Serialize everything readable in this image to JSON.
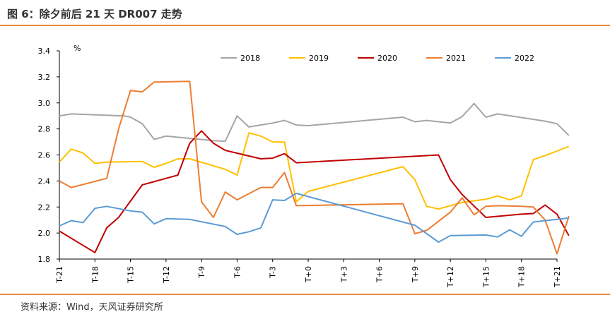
{
  "header": {
    "title": "图 6：除夕前后 21 天 DR007 走势"
  },
  "footer": {
    "source": "资料来源：Wind，天风证券研究所"
  },
  "colors": {
    "accent_rule": "#E8883A",
    "axis": "#000000"
  },
  "chart_data": {
    "type": "line",
    "title": "",
    "unit": "%",
    "ylim": [
      1.8,
      3.4
    ],
    "yticks": [
      1.8,
      2.0,
      2.2,
      2.4,
      2.6,
      2.8,
      3.0,
      3.2,
      3.4
    ],
    "ytick_labels": [
      "1.8",
      "2.0",
      "2.2",
      "2.4",
      "2.6",
      "2.8",
      "3.0",
      "3.2",
      "3.4"
    ],
    "xlim": [
      -21,
      21
    ],
    "xticks": [
      -21,
      -18,
      -15,
      -12,
      -9,
      -6,
      -3,
      0,
      3,
      6,
      9,
      12,
      15,
      18,
      21
    ],
    "xtick_labels": [
      "T-21",
      "T-18",
      "T-15",
      "T-12",
      "T-9",
      "T-6",
      "T-3",
      "T+0",
      "T+3",
      "T+6",
      "T+9",
      "T+12",
      "T+15",
      "T+18",
      "T+21"
    ],
    "grid": false,
    "legend_position": "top",
    "series": [
      {
        "name": "2018",
        "color": "#A5A5A5",
        "points": [
          [
            -21,
            2.9
          ],
          [
            -20,
            2.915
          ],
          [
            -15.5,
            2.9
          ],
          [
            -15,
            2.89
          ],
          [
            -14,
            2.84
          ],
          [
            -13,
            2.72
          ],
          [
            -12,
            2.745
          ],
          [
            -8,
            2.71
          ],
          [
            -7,
            2.705
          ],
          [
            -6,
            2.9
          ],
          [
            -5,
            2.815
          ],
          [
            -3,
            2.845
          ],
          [
            -2,
            2.865
          ],
          [
            -1,
            2.83
          ],
          [
            0,
            2.825
          ],
          [
            8,
            2.89
          ],
          [
            9,
            2.855
          ],
          [
            10,
            2.865
          ],
          [
            12,
            2.845
          ],
          [
            13,
            2.895
          ],
          [
            14,
            2.995
          ],
          [
            15,
            2.89
          ],
          [
            16,
            2.915
          ],
          [
            20,
            2.86
          ],
          [
            21,
            2.84
          ],
          [
            22,
            2.75
          ]
        ]
      },
      {
        "name": "2019",
        "color": "#FFC000",
        "points": [
          [
            -21,
            2.545
          ],
          [
            -20,
            2.645
          ],
          [
            -19,
            2.615
          ],
          [
            -18,
            2.535
          ],
          [
            -17,
            2.545
          ],
          [
            -14,
            2.55
          ],
          [
            -13,
            2.505
          ],
          [
            -12,
            2.535
          ],
          [
            -11,
            2.57
          ],
          [
            -10,
            2.57
          ],
          [
            -7,
            2.49
          ],
          [
            -6,
            2.445
          ],
          [
            -5,
            2.77
          ],
          [
            -4,
            2.745
          ],
          [
            -3,
            2.7
          ],
          [
            -2,
            2.7
          ],
          [
            -1,
            2.24
          ],
          [
            0,
            2.32
          ],
          [
            8,
            2.51
          ],
          [
            9,
            2.41
          ],
          [
            10,
            2.205
          ],
          [
            11,
            2.185
          ],
          [
            13,
            2.235
          ],
          [
            15,
            2.26
          ],
          [
            16,
            2.285
          ],
          [
            17,
            2.255
          ],
          [
            18,
            2.285
          ],
          [
            19,
            2.565
          ],
          [
            20,
            2.595
          ],
          [
            22,
            2.665
          ]
        ]
      },
      {
        "name": "2020",
        "color": "#C00000",
        "points": [
          [
            -21,
            2.015
          ],
          [
            -18,
            1.85
          ],
          [
            -17,
            2.04
          ],
          [
            -16,
            2.12
          ],
          [
            -14,
            2.37
          ],
          [
            -12,
            2.42
          ],
          [
            -11,
            2.445
          ],
          [
            -10,
            2.69
          ],
          [
            -9,
            2.785
          ],
          [
            -8,
            2.69
          ],
          [
            -7,
            2.635
          ],
          [
            -4,
            2.57
          ],
          [
            -3,
            2.575
          ],
          [
            -2,
            2.61
          ],
          [
            -1,
            2.54
          ],
          [
            11,
            2.6
          ],
          [
            12,
            2.41
          ],
          [
            13,
            2.295
          ],
          [
            15,
            2.12
          ],
          [
            18,
            2.145
          ],
          [
            19,
            2.15
          ],
          [
            20,
            2.215
          ],
          [
            21,
            2.145
          ],
          [
            22,
            1.98
          ]
        ]
      },
      {
        "name": "2021",
        "color": "#ED7D31",
        "points": [
          [
            -21,
            2.4
          ],
          [
            -20,
            2.35
          ],
          [
            -17,
            2.42
          ],
          [
            -16,
            2.8
          ],
          [
            -15,
            3.095
          ],
          [
            -14,
            3.085
          ],
          [
            -13,
            3.16
          ],
          [
            -10,
            3.165
          ],
          [
            -9,
            2.24
          ],
          [
            -8,
            2.12
          ],
          [
            -7,
            2.315
          ],
          [
            -6,
            2.255
          ],
          [
            -4,
            2.35
          ],
          [
            -3,
            2.35
          ],
          [
            -2,
            2.465
          ],
          [
            -1,
            2.21
          ],
          [
            8,
            2.225
          ],
          [
            9,
            1.995
          ],
          [
            10,
            2.02
          ],
          [
            12,
            2.16
          ],
          [
            13,
            2.27
          ],
          [
            14,
            2.14
          ],
          [
            15,
            2.205
          ],
          [
            16,
            2.21
          ],
          [
            18,
            2.205
          ],
          [
            19,
            2.2
          ],
          [
            20,
            2.1
          ],
          [
            21,
            1.84
          ],
          [
            22,
            2.13
          ]
        ]
      },
      {
        "name": "2022",
        "color": "#5B9BD5",
        "points": [
          [
            -21,
            2.055
          ],
          [
            -20,
            2.095
          ],
          [
            -19,
            2.08
          ],
          [
            -18,
            2.19
          ],
          [
            -17,
            2.205
          ],
          [
            -15,
            2.17
          ],
          [
            -14,
            2.16
          ],
          [
            -13,
            2.07
          ],
          [
            -12,
            2.11
          ],
          [
            -10,
            2.105
          ],
          [
            -7,
            2.05
          ],
          [
            -6,
            1.99
          ],
          [
            -5,
            2.01
          ],
          [
            -4,
            2.04
          ],
          [
            -3,
            2.255
          ],
          [
            -2,
            2.25
          ],
          [
            -1,
            2.305
          ],
          [
            0,
            2.28
          ],
          [
            9,
            2.06
          ],
          [
            11,
            1.93
          ],
          [
            12,
            1.98
          ],
          [
            15,
            1.985
          ],
          [
            16,
            1.97
          ],
          [
            17,
            2.025
          ],
          [
            18,
            1.975
          ],
          [
            19,
            2.085
          ],
          [
            20,
            2.095
          ],
          [
            22,
            2.115
          ]
        ]
      }
    ]
  }
}
